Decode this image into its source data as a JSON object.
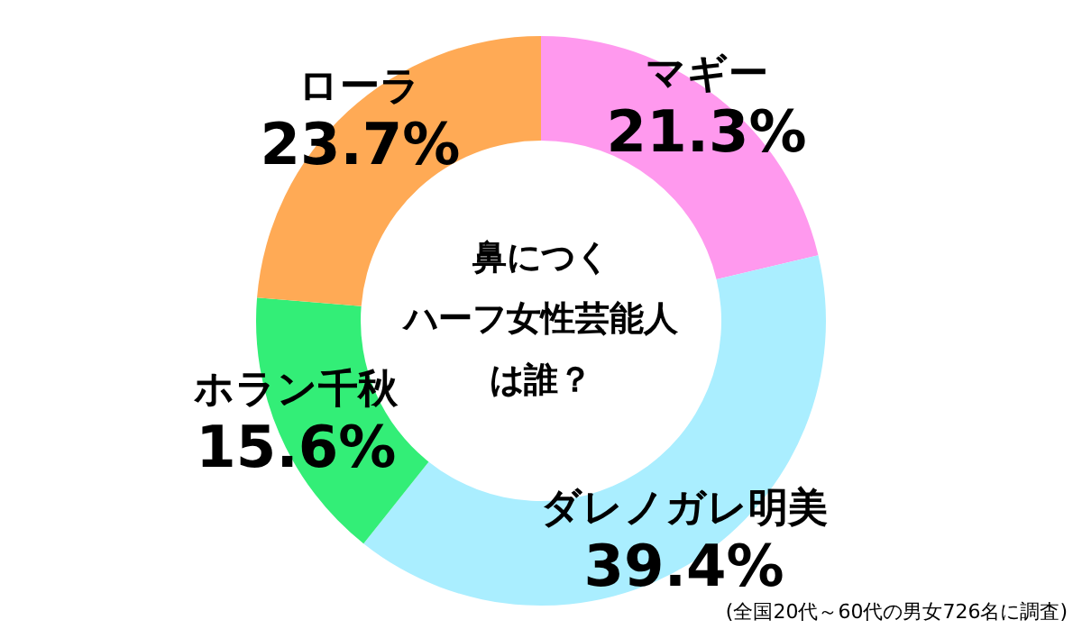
{
  "chart_data": {
    "type": "donut",
    "title": "鼻につくハーフ女性芸能人は誰？",
    "categories": [
      "マギー",
      "ダレノガレ明美",
      "ホラン千秋",
      "ローラ"
    ],
    "values": [
      21.3,
      39.4,
      15.6,
      23.7
    ],
    "value_labels": [
      "21.3%",
      "39.4%",
      "15.6%",
      "23.7%"
    ],
    "colors": [
      "#ff99ee",
      "#aaeeff",
      "#33ee77",
      "#ffaa55"
    ],
    "annotations": [
      "(全国20代～60代の男女726名に調査)"
    ]
  }
}
